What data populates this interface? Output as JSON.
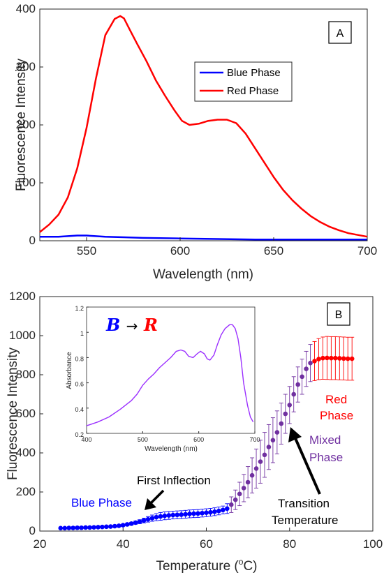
{
  "chart_data": [
    {
      "type": "line",
      "panel_label": "A",
      "xlabel": "Wavelength (nm)",
      "ylabel": "Fluorescence Intensity",
      "xlim": [
        525,
        700
      ],
      "ylim": [
        0,
        400
      ],
      "xticks": [
        "550",
        "600",
        "650",
        "700"
      ],
      "yticks": [
        "0",
        "100",
        "200",
        "300",
        "400"
      ],
      "legend_position": "upper-right-center",
      "series": [
        {
          "name": "Blue Phase",
          "color": "#0000ff",
          "x": [
            525,
            535,
            545,
            550,
            560,
            570,
            580,
            600,
            620,
            640,
            660,
            680,
            700
          ],
          "y": [
            7,
            7,
            9,
            9,
            7,
            6,
            5,
            4,
            3,
            2,
            2,
            2,
            2
          ]
        },
        {
          "name": "Red Phase",
          "color": "#ff0000",
          "x": [
            525,
            530,
            535,
            540,
            545,
            550,
            555,
            560,
            565,
            568,
            570,
            573,
            577,
            582,
            587,
            592,
            597,
            601,
            605,
            610,
            615,
            620,
            625,
            630,
            635,
            640,
            645,
            650,
            655,
            660,
            665,
            670,
            675,
            680,
            685,
            690,
            695,
            700
          ],
          "y": [
            15,
            28,
            45,
            75,
            125,
            195,
            280,
            355,
            383,
            388,
            384,
            365,
            340,
            310,
            277,
            250,
            225,
            207,
            200,
            202,
            207,
            209,
            209,
            203,
            185,
            160,
            135,
            110,
            88,
            70,
            55,
            42,
            32,
            24,
            18,
            13,
            10,
            7
          ]
        }
      ]
    },
    {
      "type": "scatter",
      "panel_label": "B",
      "xlabel_main": "Temperature (",
      "xlabel_sup": "o",
      "xlabel_end": "C)",
      "ylabel": "Fluorescence Intensity",
      "xlim": [
        20,
        100
      ],
      "ylim": [
        0,
        1200
      ],
      "xticks": [
        "20",
        "40",
        "60",
        "80",
        "100"
      ],
      "yticks": [
        "0",
        "200",
        "400",
        "600",
        "800",
        "1000",
        "1200"
      ],
      "series": [
        {
          "name": "Blue Phase",
          "color": "#0000ff",
          "x": [
            25,
            26,
            27,
            28,
            29,
            30,
            31,
            32,
            33,
            34,
            35,
            36,
            37,
            38,
            39,
            40,
            41,
            42,
            43,
            44,
            45,
            46,
            47,
            48,
            49,
            50,
            51,
            52,
            53,
            54,
            55,
            56,
            57,
            58,
            59,
            60,
            61,
            62,
            63,
            64,
            65
          ],
          "y": [
            15,
            15,
            16,
            16,
            17,
            17,
            18,
            18,
            19,
            20,
            21,
            22,
            23,
            25,
            27,
            30,
            34,
            38,
            43,
            48,
            54,
            60,
            66,
            71,
            75,
            78,
            80,
            82,
            83,
            84,
            86,
            88,
            89,
            90,
            92,
            94,
            96,
            99,
            103,
            108,
            115
          ],
          "err": [
            3,
            3,
            3,
            3,
            3,
            3,
            3,
            3,
            3,
            3,
            3,
            3,
            3,
            4,
            4,
            5,
            6,
            7,
            8,
            10,
            12,
            14,
            16,
            18,
            20,
            20,
            20,
            20,
            20,
            20,
            20,
            20,
            20,
            20,
            20,
            20,
            20,
            20,
            20,
            20,
            25
          ]
        },
        {
          "name": "Mixed Phase",
          "color": "#7030a0",
          "x": [
            66,
            67,
            68,
            69,
            70,
            71,
            72,
            73,
            74,
            75,
            76,
            77,
            78,
            79,
            80,
            81,
            82,
            83,
            84,
            85
          ],
          "y": [
            135,
            160,
            190,
            220,
            250,
            285,
            320,
            355,
            390,
            430,
            465,
            505,
            550,
            600,
            645,
            700,
            750,
            790,
            830,
            860
          ],
          "err": [
            40,
            50,
            60,
            70,
            80,
            90,
            100,
            110,
            115,
            115,
            115,
            110,
            105,
            100,
            95,
            90,
            90,
            90,
            90,
            95
          ]
        },
        {
          "name": "Red Phase",
          "color": "#ff0000",
          "x": [
            86,
            87,
            88,
            89,
            90,
            91,
            92,
            93,
            94,
            95
          ],
          "y": [
            870,
            880,
            885,
            886,
            885,
            885,
            884,
            883,
            882,
            882
          ],
          "err": [
            100,
            105,
            108,
            110,
            110,
            110,
            110,
            110,
            110,
            110
          ]
        }
      ],
      "annotations": [
        {
          "text": "Blue Phase",
          "color": "#0000ff"
        },
        {
          "text": "First Inflection",
          "color": "#000000"
        },
        {
          "text": "Transition",
          "color": "#000000"
        },
        {
          "text": "Temperature",
          "color": "#000000"
        },
        {
          "text": "Mixed",
          "color": "#7030a0"
        },
        {
          "text": "Phase",
          "color": "#7030a0"
        },
        {
          "text": "Red",
          "color": "#ff0000"
        },
        {
          "text": "Phase",
          "color": "#ff0000"
        }
      ],
      "inset": {
        "type": "line",
        "xlabel": "Wavelength (nm)",
        "ylabel": "Absorbance",
        "xlim": [
          400,
          700
        ],
        "ylim": [
          0.2,
          1.2
        ],
        "xticks": [
          "400",
          "500",
          "600",
          "700"
        ],
        "yticks": [
          "0.2",
          "0.4",
          "0.6",
          "0.8",
          "1",
          "1.2"
        ],
        "title_b": "B",
        "title_arrow": "→",
        "title_r": "R",
        "series": [
          {
            "color": "#9b30ff",
            "x": [
              400,
              420,
              440,
              460,
              480,
              490,
              500,
              510,
              520,
              530,
              540,
              550,
              560,
              568,
              575,
              582,
              590,
              597,
              603,
              610,
              615,
              620,
              627,
              633,
              640,
              647,
              655,
              660,
              665,
              670,
              675,
              680,
              687,
              692,
              697
            ],
            "y": [
              0.26,
              0.29,
              0.33,
              0.39,
              0.46,
              0.51,
              0.58,
              0.63,
              0.67,
              0.72,
              0.76,
              0.8,
              0.85,
              0.86,
              0.85,
              0.81,
              0.8,
              0.83,
              0.85,
              0.83,
              0.79,
              0.78,
              0.82,
              0.9,
              0.98,
              1.03,
              1.06,
              1.06,
              1.03,
              0.95,
              0.8,
              0.6,
              0.42,
              0.33,
              0.29
            ]
          }
        ]
      }
    }
  ]
}
